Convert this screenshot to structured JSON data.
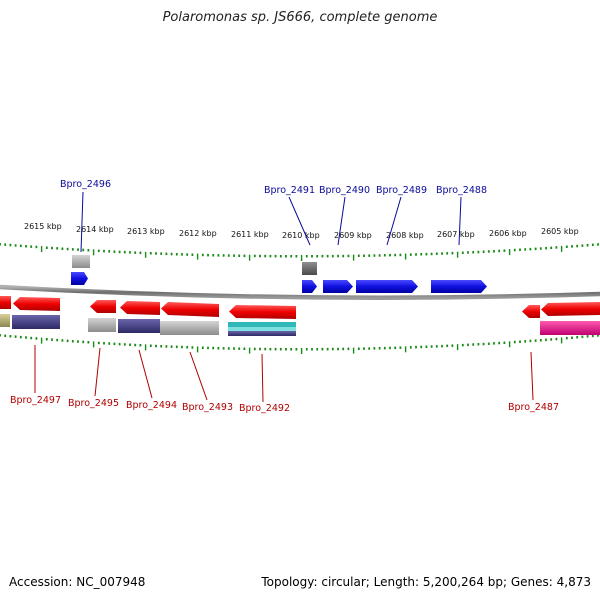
{
  "title": "Polaromonas sp. JS666, complete genome",
  "footer": {
    "accession": "Accession: NC_007948",
    "summary": "Topology: circular; Length: 5,200,264 bp; Genes: 4,873"
  },
  "colors": {
    "forward": "#1010e0",
    "reverse": "#ee1111",
    "backbone": "#888888",
    "ticks": "#1a8a1a",
    "label_top": "#0a0a9a",
    "label_bottom": "#b00000",
    "cog_purple": "#4a4488",
    "cog_gray": "#aaaaaa",
    "cog_teal": "#30b8b8",
    "cog_pink": "#e8158c",
    "cog_olive": "#b8b070"
  },
  "chart_data": {
    "type": "genome-map",
    "kbp_labels": [
      "2615 kbp",
      "2614 kbp",
      "2613 kbp",
      "2612 kbp",
      "2611 kbp",
      "2610 kbp",
      "2609 kbp",
      "2608 kbp",
      "2607 kbp",
      "2606 kbp",
      "2605 kbp"
    ],
    "top_gene_labels": [
      "Bpro_2496",
      "Bpro_2491",
      "Bpro_2490",
      "Bpro_2489",
      "Bpro_2488"
    ],
    "bottom_gene_labels": [
      "Bpro_2497",
      "Bpro_2495",
      "Bpro_2494",
      "Bpro_2493",
      "Bpro_2492",
      "Bpro_2487"
    ]
  }
}
